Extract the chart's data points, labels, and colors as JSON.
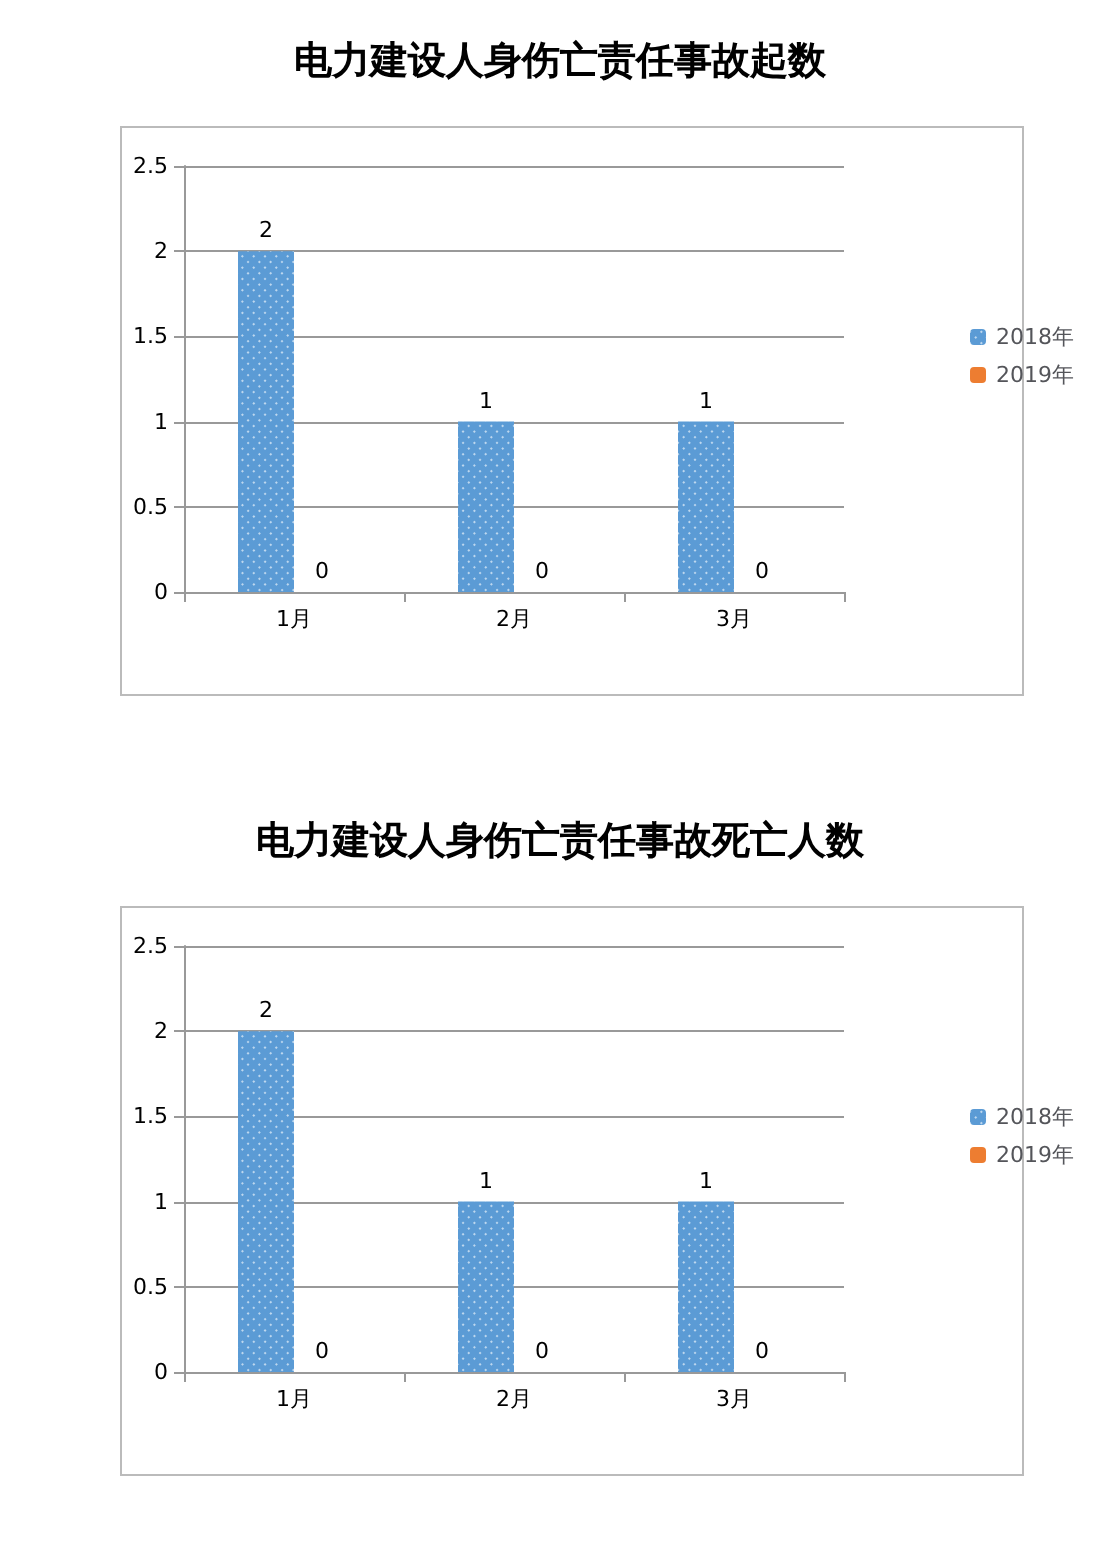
{
  "chart_data": [
    {
      "type": "bar",
      "title": "电力建设人身伤亡责任事故起数",
      "categories": [
        "1月",
        "2月",
        "3月"
      ],
      "series": [
        {
          "name": "2018年",
          "color": "#5b9bd5",
          "values": [
            2,
            1,
            1
          ]
        },
        {
          "name": "2019年",
          "color": "#ed7d31",
          "values": [
            0,
            0,
            0
          ]
        }
      ],
      "ylim": [
        0,
        2.5
      ],
      "yticks": [
        0,
        0.5,
        1,
        1.5,
        2,
        2.5
      ],
      "grid": "y",
      "legend": "right",
      "data_labels": true
    },
    {
      "type": "bar",
      "title": "电力建设人身伤亡责任事故死亡人数",
      "categories": [
        "1月",
        "2月",
        "3月"
      ],
      "series": [
        {
          "name": "2018年",
          "color": "#5b9bd5",
          "values": [
            2,
            1,
            1
          ]
        },
        {
          "name": "2019年",
          "color": "#ed7d31",
          "values": [
            0,
            0,
            0
          ]
        }
      ],
      "ylim": [
        0,
        2.5
      ],
      "yticks": [
        0,
        0.5,
        1,
        1.5,
        2,
        2.5
      ],
      "grid": "y",
      "legend": "right",
      "data_labels": true
    }
  ]
}
